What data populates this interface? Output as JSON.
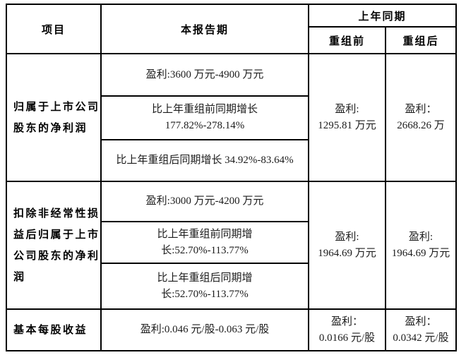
{
  "table": {
    "header": {
      "item": "项目",
      "current_period": "本报告期",
      "prior_period": "上年同期",
      "pre_restructuring": "重组前",
      "post_restructuring": "重组后"
    },
    "rows": [
      {
        "label": "归属于上市公司\n股东的净利润",
        "current": [
          "盈利:3600 万元-4900 万元",
          "比上年重组前同期增长\n177.82%-278.14%",
          "比上年重组后同期增长 34.92%-83.64%"
        ],
        "pre": "盈利:\n1295.81 万元",
        "post": "盈利：\n2668.26 万"
      },
      {
        "label": "扣除非经常性损\n益后归属于上市\n公司股东的净利\n润",
        "current": [
          "盈利:3000 万元-4200 万元",
          "比上年重组前同期增\n长:52.70%-113.77%",
          "比上年重组后同期增\n长:52.70%-113.77%"
        ],
        "pre": "盈利:\n1964.69 万元",
        "post": "盈利:\n1964.69 万元"
      },
      {
        "label": "基本每股收益",
        "current": [
          "盈利:0.046 元/股-0.063 元/股"
        ],
        "pre": "盈利：\n0.0166 元/股",
        "post": "盈利：\n0.0342 元/股"
      }
    ]
  }
}
